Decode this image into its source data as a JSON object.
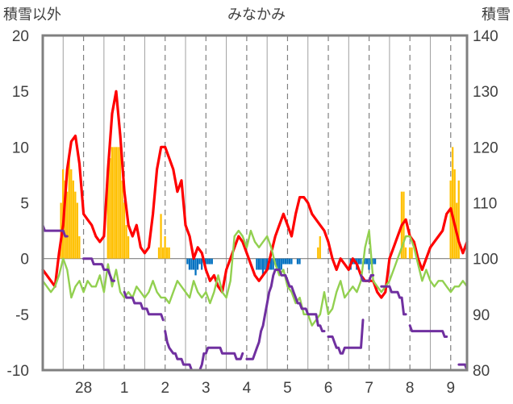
{
  "chart_data": {
    "type": "line",
    "title": "みなかみ",
    "left_axis_label": "積雪以外",
    "right_axis_label": "積雪",
    "left_ylim": [
      -10,
      20
    ],
    "left_yticks": [
      -10,
      -5,
      0,
      5,
      10,
      15,
      20
    ],
    "right_ylim": [
      80,
      140
    ],
    "right_yticks": [
      80,
      90,
      100,
      110,
      120,
      130,
      140
    ],
    "xlim": [
      -1.0,
      9.4
    ],
    "day_ticks": [
      {
        "pos": 0,
        "label": "28"
      },
      {
        "pos": 1,
        "label": "1"
      },
      {
        "pos": 2,
        "label": "2"
      },
      {
        "pos": 3,
        "label": "3"
      },
      {
        "pos": 4,
        "label": "4"
      },
      {
        "pos": 5,
        "label": "5"
      },
      {
        "pos": 6,
        "label": "6"
      },
      {
        "pos": 7,
        "label": "7"
      },
      {
        "pos": 8,
        "label": "8"
      },
      {
        "pos": 9,
        "label": "9"
      }
    ],
    "gridlines": "vertical dashed at 12:00, solid at day boundaries",
    "colors": {
      "temperature": "#ff0000",
      "dewpoint": "#92d050",
      "precipitation": "#ffc000",
      "sunshine": "#0070c0",
      "snow_depth": "#7030a0",
      "axes": "#808080"
    },
    "series": [
      {
        "name": "temperature",
        "axis": "left",
        "x": [
          -1.0,
          -0.9,
          -0.8,
          -0.7,
          -0.6,
          -0.5,
          -0.4,
          -0.3,
          -0.2,
          -0.1,
          0.0,
          0.1,
          0.2,
          0.3,
          0.4,
          0.5,
          0.6,
          0.7,
          0.8,
          0.9,
          1.0,
          1.1,
          1.2,
          1.3,
          1.4,
          1.5,
          1.6,
          1.7,
          1.8,
          1.9,
          2.0,
          2.1,
          2.2,
          2.3,
          2.4,
          2.5,
          2.6,
          2.7,
          2.8,
          2.9,
          3.0,
          3.1,
          3.2,
          3.3,
          3.4,
          3.5,
          3.6,
          3.7,
          3.8,
          3.9,
          4.0,
          4.1,
          4.2,
          4.3,
          4.4,
          4.5,
          4.6,
          4.7,
          4.8,
          4.9,
          5.0,
          5.1,
          5.2,
          5.3,
          5.4,
          5.5,
          5.6,
          5.7,
          5.8,
          5.9,
          6.0,
          6.1,
          6.2,
          6.3,
          6.4,
          6.5,
          6.6,
          6.7,
          6.8,
          6.9,
          7.0,
          7.1,
          7.2,
          7.3,
          7.4,
          7.5,
          7.6,
          7.7,
          7.8,
          7.9,
          8.0,
          8.1,
          8.2,
          8.3,
          8.4,
          8.5,
          8.6,
          8.7,
          8.8,
          8.9,
          9.0,
          9.1,
          9.2,
          9.3,
          9.4
        ],
        "values": [
          -1,
          -1.5,
          -2,
          -2.5,
          0.5,
          3,
          8,
          10.5,
          11,
          8.5,
          4,
          3.5,
          3,
          2,
          1.5,
          2,
          8,
          13,
          15,
          11,
          6,
          3,
          2,
          3,
          1,
          0.5,
          1,
          4,
          8,
          10,
          10,
          9,
          8,
          6,
          7,
          3,
          2,
          0,
          1,
          0.5,
          -1,
          -2,
          -1.5,
          -2.5,
          -3,
          -1,
          0,
          1,
          2,
          1.5,
          0.5,
          -0.5,
          -1.5,
          -2,
          -1.5,
          -1,
          0.5,
          2,
          3,
          4,
          3,
          2,
          4,
          5.5,
          5.5,
          5,
          4,
          3.5,
          3,
          2.5,
          1.5,
          0,
          -1,
          0,
          -0.5,
          -1,
          0,
          -0.5,
          -1.5,
          -2,
          -2,
          -2,
          -3,
          -3.5,
          -3,
          0,
          1,
          2,
          3,
          3.5,
          2,
          1.5,
          0,
          -1,
          0,
          1,
          1.5,
          2,
          2.5,
          4,
          4.5,
          3,
          1.5,
          0.5,
          1.5
        ]
      },
      {
        "name": "dewpoint",
        "axis": "left",
        "x": [
          -1.0,
          -0.9,
          -0.8,
          -0.7,
          -0.6,
          -0.5,
          -0.4,
          -0.3,
          -0.2,
          -0.1,
          0.0,
          0.1,
          0.2,
          0.3,
          0.4,
          0.5,
          0.6,
          0.7,
          0.8,
          0.9,
          1.0,
          1.1,
          1.2,
          1.3,
          1.4,
          1.5,
          1.6,
          1.7,
          1.8,
          1.9,
          2.0,
          2.1,
          2.2,
          2.3,
          2.4,
          2.5,
          2.6,
          2.7,
          2.8,
          2.9,
          3.0,
          3.1,
          3.2,
          3.3,
          3.4,
          3.5,
          3.6,
          3.7,
          3.8,
          3.9,
          4.0,
          4.1,
          4.2,
          4.3,
          4.4,
          4.5,
          4.6,
          4.7,
          4.8,
          4.9,
          5.0,
          5.1,
          5.2,
          5.3,
          5.4,
          5.5,
          5.6,
          5.7,
          5.8,
          5.9,
          6.0,
          6.1,
          6.2,
          6.3,
          6.4,
          6.5,
          6.6,
          6.7,
          6.8,
          6.9,
          7.0,
          7.1,
          7.2,
          7.3,
          7.4,
          7.5,
          7.6,
          7.7,
          7.8,
          7.9,
          8.0,
          8.1,
          8.2,
          8.3,
          8.4,
          8.5,
          8.6,
          8.7,
          8.8,
          8.9,
          9.0,
          9.1,
          9.2,
          9.3,
          9.4
        ],
        "values": [
          -2,
          -2.5,
          -3,
          -2.5,
          -1.5,
          0,
          -1,
          -3.5,
          -2.5,
          -2,
          -3,
          -2,
          -2.5,
          -2.5,
          -1.5,
          -3,
          -0.5,
          -2.5,
          -1,
          -3,
          -3.5,
          -3,
          -3.5,
          -2.5,
          -3,
          -3.5,
          -3,
          -2,
          -3,
          -3.5,
          -3.5,
          -4,
          -3,
          -2,
          -2.5,
          -3,
          -3.5,
          -2,
          -3,
          -3.5,
          -3,
          -4,
          -3,
          -1.5,
          -3,
          -3.5,
          -2,
          2,
          2.5,
          2,
          1,
          2.5,
          1.5,
          1,
          1.5,
          2,
          1,
          -0.5,
          -1.5,
          -1,
          -2.5,
          -3,
          -4,
          -3.5,
          -5,
          -5,
          -6,
          -5.5,
          -5,
          -3,
          -5,
          -4.5,
          -3,
          -2,
          -3.5,
          -3,
          -2.5,
          -3,
          -2,
          1,
          2.5,
          -2,
          -2.5,
          -3,
          -2.5,
          -2,
          -1,
          0,
          1,
          2,
          2,
          1,
          -0.5,
          -2,
          -1,
          -2,
          -2.5,
          -2,
          -2,
          -2.5,
          -3,
          -2.5,
          -2.5,
          -2,
          -2.5
        ]
      },
      {
        "name": "precipitation",
        "axis": "left",
        "type": "bar",
        "x": [
          -0.55,
          -0.5,
          -0.45,
          -0.4,
          -0.35,
          -0.3,
          -0.25,
          -0.2,
          -0.15,
          -0.1,
          0.6,
          0.65,
          0.7,
          0.75,
          0.8,
          0.85,
          0.9,
          0.95,
          1.0,
          1.05,
          1.1,
          1.85,
          1.9,
          1.95,
          2.0,
          2.05,
          2.1,
          5.75,
          5.8,
          7.8,
          7.85,
          7.9,
          8.0,
          8.05,
          9.0,
          9.05,
          9.1,
          9.15,
          9.2
        ],
        "values": [
          5,
          8,
          7,
          6,
          9,
          8,
          7,
          6,
          5,
          2,
          8,
          9,
          10,
          10,
          10,
          10,
          10,
          7,
          5,
          3,
          2,
          1,
          4,
          1,
          2,
          1,
          1,
          1,
          2,
          6,
          6,
          1,
          1,
          1,
          7,
          10,
          8,
          5,
          7
        ]
      },
      {
        "name": "sunshine",
        "axis": "left",
        "type": "bar",
        "x": [
          2.55,
          2.6,
          2.65,
          2.7,
          2.75,
          2.8,
          2.85,
          2.9,
          3.0,
          3.05,
          3.1,
          3.15,
          4.25,
          4.3,
          4.35,
          4.4,
          4.45,
          4.5,
          4.55,
          4.6,
          4.65,
          4.7,
          4.75,
          4.8,
          4.85,
          4.9,
          4.95,
          5.0,
          5.05,
          5.1,
          5.25,
          5.3,
          6.55,
          6.6,
          6.65,
          6.7,
          6.75,
          6.8,
          6.9,
          6.95,
          7.0,
          7.05,
          7.1,
          7.15
        ],
        "values": [
          -0.5,
          -1,
          -1,
          -1,
          -1.5,
          -1,
          -0.5,
          -1,
          -0.5,
          -0.5,
          -0.5,
          -0.5,
          -1,
          -1,
          -1,
          -1.5,
          -1,
          -1,
          -1,
          -1,
          -1,
          -0.5,
          -1,
          -1,
          -1,
          -0.5,
          -0.5,
          -0.5,
          -0.5,
          -0.5,
          -0.5,
          -0.5,
          -1,
          -0.5,
          -0.5,
          -1,
          -0.5,
          -0.5,
          -0.5,
          -0.5,
          -1,
          -0.5,
          -0.5,
          -0.5
        ]
      },
      {
        "name": "snow_depth",
        "axis": "right",
        "segments": [
          {
            "x": [
              -1.0,
              -0.95,
              -0.9,
              -0.5,
              -0.45,
              -0.4
            ],
            "values": [
              106,
              105,
              105,
              105,
              104,
              104
            ]
          },
          {
            "x": [
              0.0,
              0.05,
              0.15,
              0.2,
              0.25,
              0.4,
              0.45,
              0.5,
              0.55,
              0.6,
              0.7,
              0.75
            ],
            "values": [
              100,
              100,
              100,
              100,
              99,
              99,
              99,
              98,
              98,
              98,
              96,
              96
            ]
          },
          {
            "x": [
              1.0,
              1.05,
              1.1,
              1.2,
              1.25,
              1.4,
              1.45,
              1.5,
              1.55,
              1.6,
              1.8,
              1.85,
              1.9,
              1.95
            ],
            "values": [
              94,
              93,
              93,
              93,
              92,
              92,
              91,
              91,
              91,
              90,
              90,
              90,
              90,
              89
            ]
          },
          {
            "x": [
              2.0,
              2.05,
              2.1,
              2.2,
              2.25,
              2.3,
              2.4,
              2.45,
              2.5,
              2.6,
              2.65,
              2.7,
              2.8,
              2.85,
              2.9,
              2.95
            ],
            "values": [
              87,
              85,
              84,
              83,
              83,
              82,
              82,
              81,
              81,
              81,
              80,
              80,
              80,
              80,
              81,
              83
            ]
          },
          {
            "x": [
              3.0,
              3.05,
              3.1,
              3.3,
              3.35,
              3.4,
              3.6,
              3.7,
              3.75,
              3.8,
              3.85,
              3.9
            ],
            "values": [
              83,
              84,
              84,
              84,
              84,
              83,
              83,
              83,
              82,
              82,
              82,
              83
            ]
          },
          {
            "x": [
              4.0,
              4.05,
              4.1,
              4.15,
              4.2,
              4.25,
              4.3,
              4.35,
              4.4,
              4.45,
              4.5,
              4.55,
              4.6,
              4.65,
              4.7,
              4.75,
              4.8,
              4.85,
              4.9,
              4.95,
              5.0,
              5.05,
              5.1,
              5.15,
              5.2,
              5.25,
              5.3,
              5.35,
              5.4,
              5.45,
              5.5,
              5.55,
              5.6,
              5.65,
              5.7,
              5.75,
              5.8,
              5.85,
              5.9
            ],
            "values": [
              82,
              82,
              82,
              82,
              83,
              84,
              85,
              87,
              88,
              90,
              92,
              94,
              95,
              97,
              98,
              98,
              98,
              97,
              97,
              97,
              96,
              95,
              95,
              94,
              93,
              92,
              92,
              91,
              91,
              91,
              90,
              90,
              90,
              90,
              90,
              88,
              88,
              87,
              87
            ]
          },
          {
            "x": [
              6.0,
              6.05,
              6.1,
              6.15,
              6.2,
              6.25,
              6.3,
              6.35,
              6.4,
              6.45,
              6.5,
              6.55,
              6.6,
              6.65,
              6.7,
              6.75,
              6.8,
              6.85
            ],
            "values": [
              86,
              86,
              86,
              85,
              84,
              84,
              83,
              83,
              84,
              84,
              84,
              84,
              84,
              84,
              84,
              84,
              84,
              89
            ]
          },
          {
            "x": [
              6.8,
              6.85,
              6.9,
              7.0,
              7.05,
              7.1
            ],
            "values": [
              97,
              96,
              96,
              96,
              97,
              97
            ]
          },
          {
            "x": [
              7.3,
              7.35,
              7.45,
              7.5,
              7.55,
              7.7,
              7.75,
              7.8,
              7.85,
              7.9
            ],
            "values": [
              95,
              95,
              95,
              95,
              94,
              94,
              93,
              93,
              90,
              90
            ]
          },
          {
            "x": [
              8.0,
              8.05,
              8.1,
              8.15,
              8.3,
              8.4,
              8.45,
              8.6,
              8.65,
              8.8,
              8.85,
              8.9
            ],
            "values": [
              88,
              87,
              87,
              87,
              87,
              87,
              87,
              87,
              87,
              87,
              86,
              86
            ]
          },
          {
            "x": [
              9.2,
              9.25,
              9.3,
              9.35,
              9.4
            ],
            "values": [
              81,
              81,
              81,
              81,
              80
            ]
          }
        ]
      }
    ]
  }
}
